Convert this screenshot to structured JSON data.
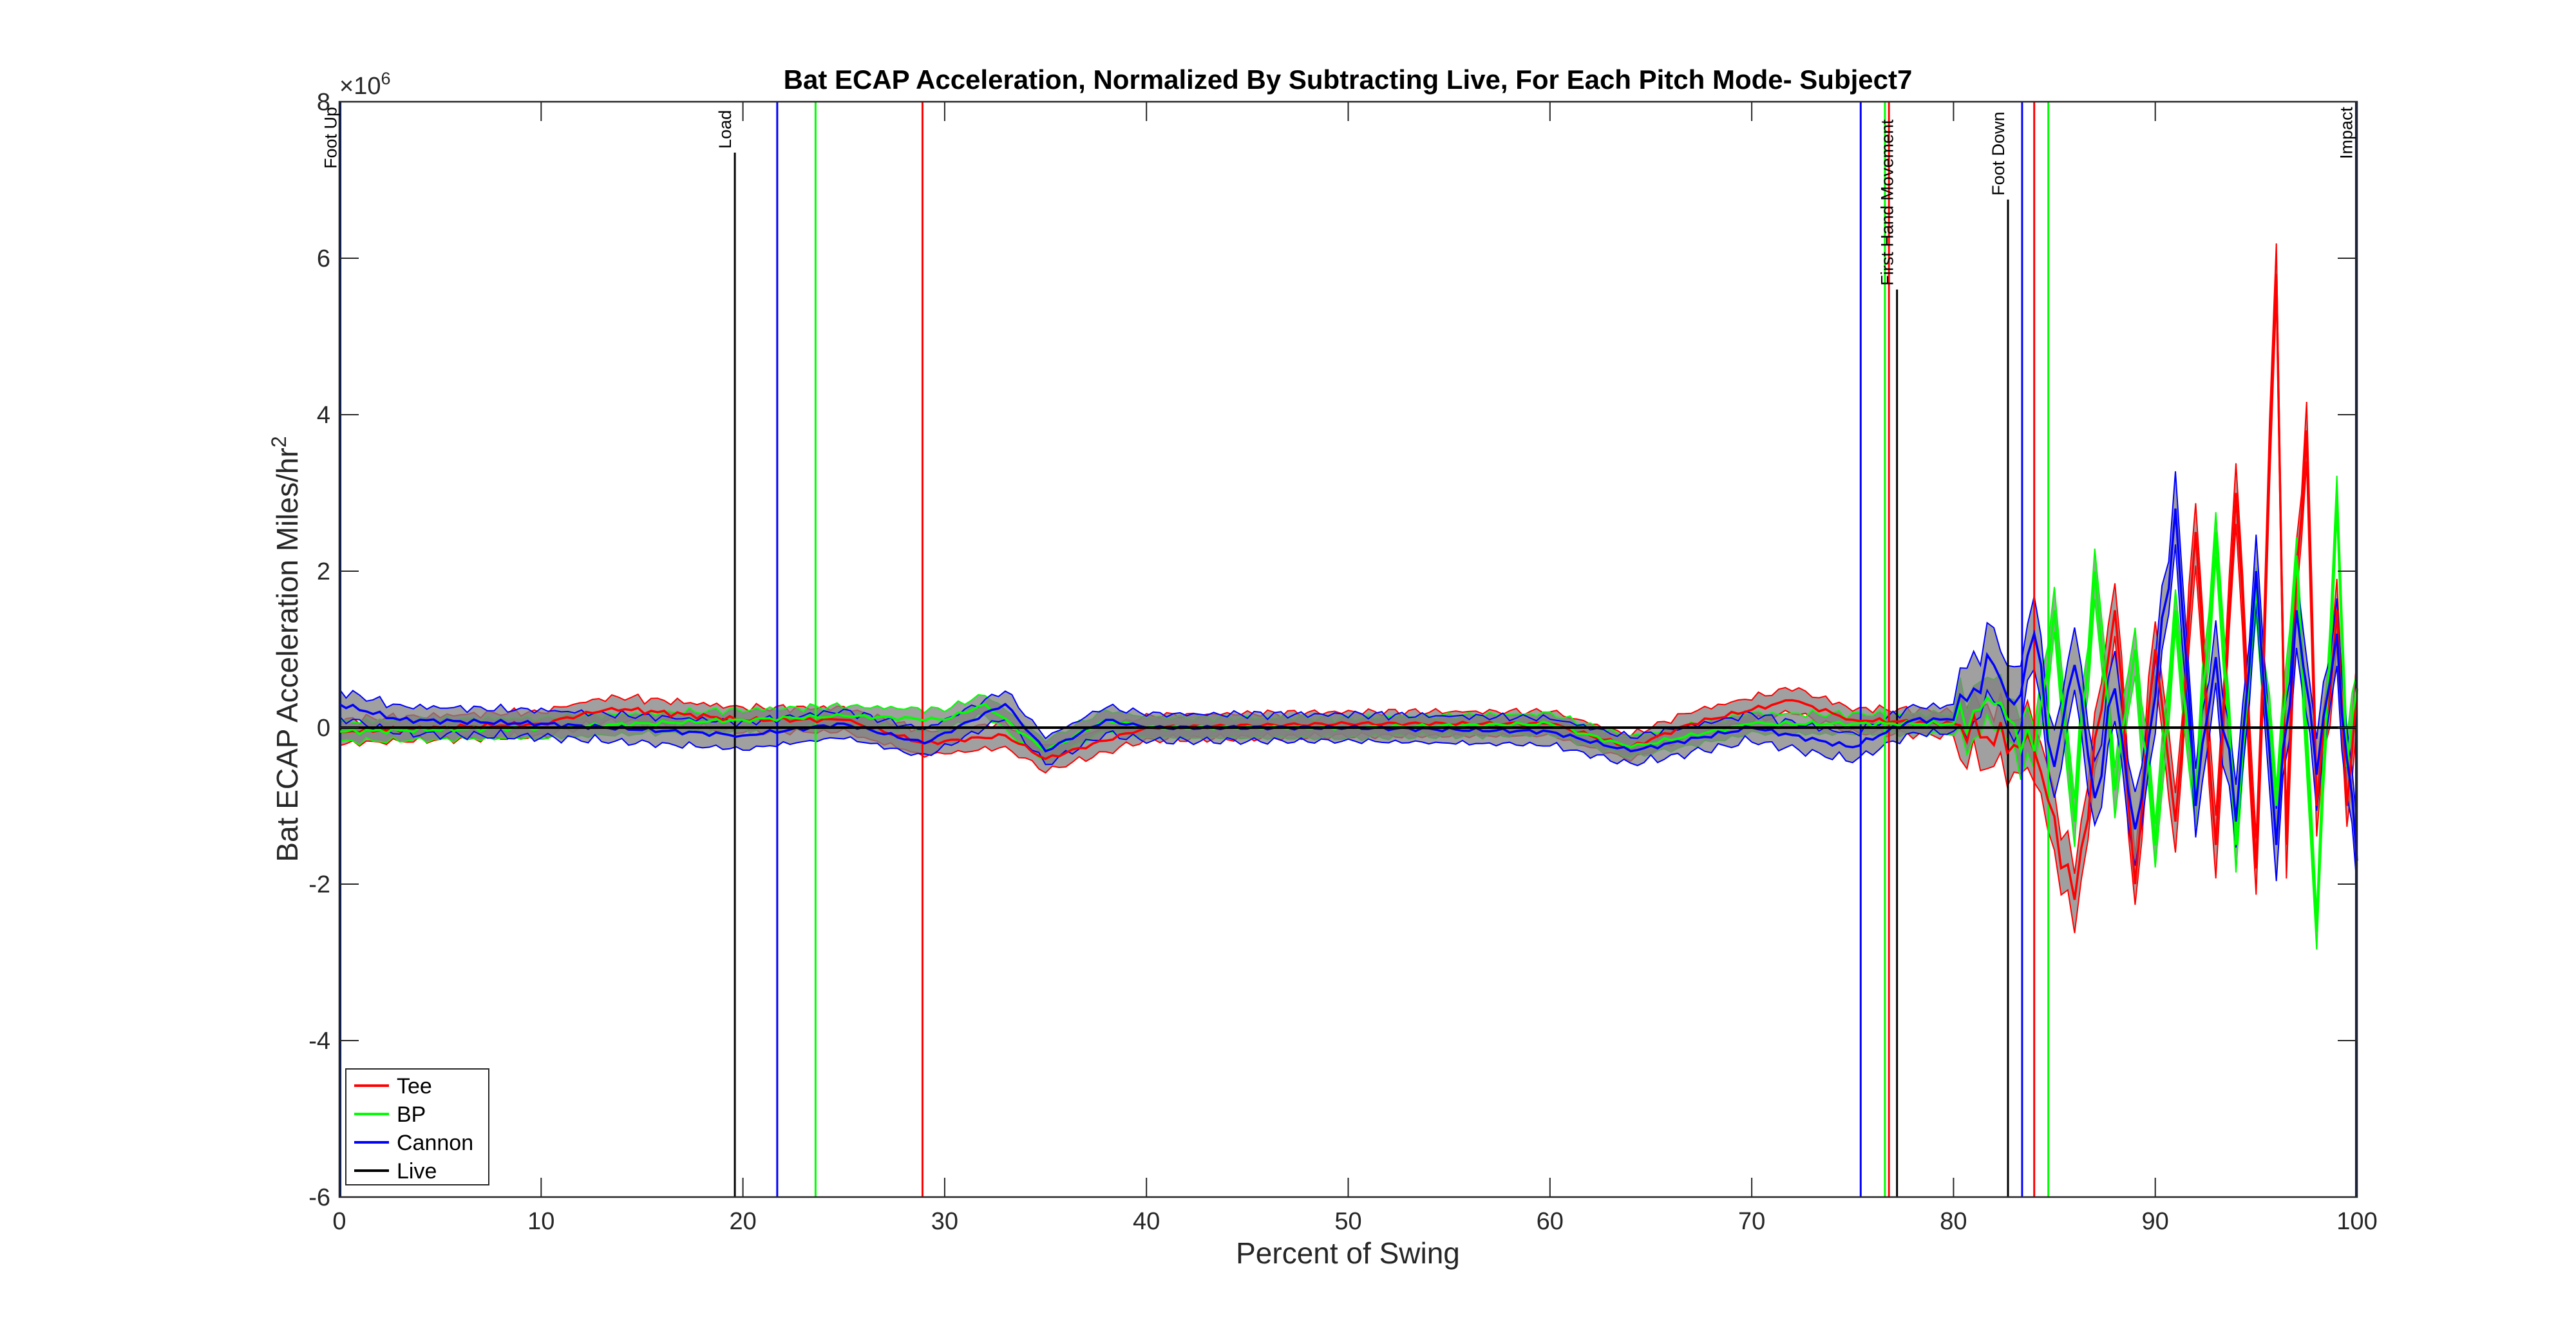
{
  "chart_data": {
    "type": "line",
    "title": "Bat ECAP Acceleration, Normalized By Subtracting Live, For Each Pitch Mode- Subject7",
    "xlabel": "Percent of Swing",
    "ylabel": "Bat ECAP Acceleration Miles/hr",
    "ylabel_superscript": "2",
    "y_exponent_base": "×10",
    "y_exponent_power": "6",
    "xlim": [
      0,
      100
    ],
    "ylim": [
      -6,
      8
    ],
    "x_ticks": [
      "0",
      "10",
      "20",
      "30",
      "40",
      "50",
      "60",
      "70",
      "80",
      "90",
      "100"
    ],
    "y_ticks": [
      "-6",
      "-4",
      "-2",
      "0",
      "2",
      "4",
      "6",
      "8"
    ],
    "grid": false,
    "legend_position": "bottom-left",
    "series": [
      {
        "name": "Tee",
        "color": "#ff0000",
        "points": [
          [
            0,
            -0.05
          ],
          [
            10,
            0.05
          ],
          [
            13.5,
            0.25
          ],
          [
            20,
            0.1
          ],
          [
            25,
            0.1
          ],
          [
            29,
            -0.2
          ],
          [
            33,
            -0.1
          ],
          [
            35,
            -0.4
          ],
          [
            40,
            0.0
          ],
          [
            50,
            0.05
          ],
          [
            60,
            0.05
          ],
          [
            64,
            -0.25
          ],
          [
            67,
            0.05
          ],
          [
            72,
            0.35
          ],
          [
            75,
            0.1
          ],
          [
            80,
            0.05
          ],
          [
            84,
            -0.3
          ],
          [
            86,
            -2.2
          ],
          [
            88,
            1.5
          ],
          [
            89,
            -2.0
          ],
          [
            90,
            1.0
          ],
          [
            91,
            -1.2
          ],
          [
            92,
            2.5
          ],
          [
            93,
            -1.5
          ],
          [
            94,
            3.0
          ],
          [
            95,
            -1.8
          ],
          [
            96,
            5.8
          ],
          [
            96.5,
            -1.5
          ],
          [
            97,
            2.0
          ],
          [
            97.5,
            3.8
          ],
          [
            98,
            -1.0
          ],
          [
            99,
            1.5
          ],
          [
            99.5,
            -1.0
          ],
          [
            100,
            0.5
          ]
        ],
        "band": 0.18
      },
      {
        "name": "BP",
        "color": "#00ff00",
        "points": [
          [
            0,
            -0.05
          ],
          [
            10,
            0.0
          ],
          [
            20,
            0.1
          ],
          [
            25,
            0.15
          ],
          [
            30,
            0.1
          ],
          [
            32,
            0.3
          ],
          [
            35,
            -0.3
          ],
          [
            38,
            0.1
          ],
          [
            40,
            0.0
          ],
          [
            50,
            0.0
          ],
          [
            60,
            0.05
          ],
          [
            64,
            -0.25
          ],
          [
            70,
            0.05
          ],
          [
            75,
            0.05
          ],
          [
            80,
            0.05
          ],
          [
            82,
            0.3
          ],
          [
            84,
            -0.3
          ],
          [
            85,
            1.5
          ],
          [
            86,
            -1.2
          ],
          [
            87,
            2.0
          ],
          [
            88,
            -0.8
          ],
          [
            89,
            1.0
          ],
          [
            90,
            -1.5
          ],
          [
            91,
            1.5
          ],
          [
            92,
            -1.0
          ],
          [
            93,
            2.5
          ],
          [
            94,
            -1.5
          ],
          [
            95,
            1.8
          ],
          [
            96,
            -1.0
          ],
          [
            97,
            2.2
          ],
          [
            98,
            -2.6
          ],
          [
            99,
            3.0
          ],
          [
            99.5,
            -0.5
          ],
          [
            100,
            0.5
          ]
        ],
        "band": 0.15
      },
      {
        "name": "Cannon",
        "color": "#0000ff",
        "points": [
          [
            0,
            0.3
          ],
          [
            3,
            0.1
          ],
          [
            10,
            0.05
          ],
          [
            20,
            -0.1
          ],
          [
            25,
            0.05
          ],
          [
            29,
            -0.2
          ],
          [
            33,
            0.3
          ],
          [
            35,
            -0.3
          ],
          [
            38,
            0.1
          ],
          [
            40,
            0.0
          ],
          [
            50,
            0.0
          ],
          [
            60,
            -0.05
          ],
          [
            64,
            -0.3
          ],
          [
            70,
            0.0
          ],
          [
            75,
            -0.25
          ],
          [
            78,
            0.1
          ],
          [
            80,
            0.1
          ],
          [
            81,
            0.5
          ],
          [
            82,
            0.8
          ],
          [
            83,
            0.3
          ],
          [
            84,
            1.2
          ],
          [
            85,
            -0.5
          ],
          [
            86,
            0.8
          ],
          [
            87,
            -0.9
          ],
          [
            88,
            0.5
          ],
          [
            89,
            -1.3
          ],
          [
            90,
            0.4
          ],
          [
            91,
            2.8
          ],
          [
            92,
            -1.0
          ],
          [
            93,
            0.9
          ],
          [
            94,
            -1.2
          ],
          [
            95,
            2.0
          ],
          [
            96,
            -1.5
          ],
          [
            97,
            1.5
          ],
          [
            98,
            -0.6
          ],
          [
            99,
            1.2
          ],
          [
            99.5,
            -0.4
          ],
          [
            100,
            -1.7
          ]
        ],
        "band": 0.2
      },
      {
        "name": "Live",
        "color": "#000000",
        "points": [
          [
            0,
            0
          ],
          [
            100,
            0
          ]
        ],
        "band": 0
      }
    ],
    "event_lines": [
      {
        "label": "Foot Up",
        "x": 0.05,
        "color": "#0a1f5c",
        "label_y": 8.0
      },
      {
        "label": "Load",
        "x": 19.6,
        "color": "#000000",
        "label_y": 7.4
      },
      {
        "label": "",
        "x": 21.7,
        "color": "#0000ff",
        "label_y": 8.0
      },
      {
        "label": "",
        "x": 23.6,
        "color": "#00ff00",
        "label_y": 8.0
      },
      {
        "label": "",
        "x": 28.9,
        "color": "#ff0000",
        "label_y": 8.0
      },
      {
        "label": "",
        "x": 75.4,
        "color": "#0000ff",
        "label_y": 8.0
      },
      {
        "label": "",
        "x": 76.6,
        "color": "#00ff00",
        "label_y": 8.0
      },
      {
        "label": "",
        "x": 76.8,
        "color": "#ff0000",
        "label_y": 8.0
      },
      {
        "label": "First Hand Movement",
        "x": 77.2,
        "color": "#000000",
        "label_y": 8.0
      },
      {
        "label": "Foot Down",
        "x": 82.7,
        "color": "#000000",
        "label_y": 8.0
      },
      {
        "label": "",
        "x": 83.4,
        "color": "#0000ff",
        "label_y": 8.0
      },
      {
        "label": "",
        "x": 84.0,
        "color": "#ff0000",
        "label_y": 8.0
      },
      {
        "label": "",
        "x": 84.7,
        "color": "#00ff00",
        "label_y": 8.0
      },
      {
        "label": "Impact",
        "x": 99.95,
        "color": "#0a1f5c",
        "label_y": 8.0
      }
    ]
  }
}
